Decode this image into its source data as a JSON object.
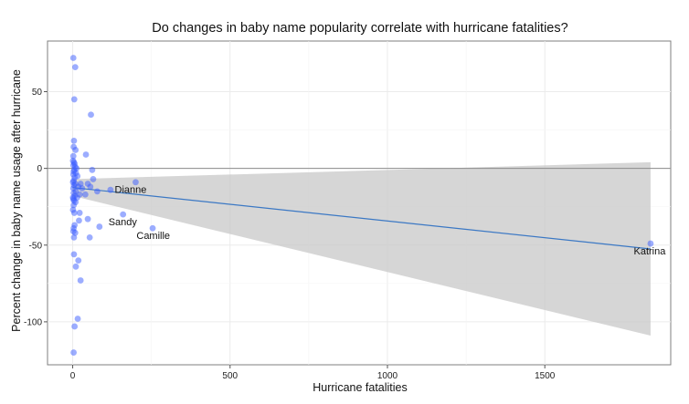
{
  "chart_data": {
    "type": "scatter",
    "title": "Do changes in baby name popularity correlate with hurricane fatalities?",
    "xlabel": "Hurricane fatalities",
    "ylabel": "Percent change in baby name usage after hurricane",
    "xlim": [
      -80,
      1900
    ],
    "ylim": [
      -128,
      83
    ],
    "x_ticks": [
      0,
      500,
      1000,
      1500
    ],
    "y_ticks": [
      50,
      0,
      -50,
      -100
    ],
    "x_tick_labels": [
      "0",
      "500",
      "1000",
      "1500"
    ],
    "y_tick_labels": [
      "50",
      "0",
      "-50",
      "-100"
    ],
    "grid": true,
    "reference_line_y": 0,
    "regression": {
      "x": [
        0,
        1836
      ],
      "y": [
        -12.5,
        -52.5
      ],
      "band_upper": [
        -7,
        4
      ],
      "band_lower": [
        -18,
        -109
      ]
    },
    "annotations": [
      {
        "label": "Dianne",
        "x": 184,
        "y": -16
      },
      {
        "label": "Sandy",
        "x": 159,
        "y": -37
      },
      {
        "label": "Camille",
        "x": 256,
        "y": -46
      },
      {
        "label": "Katrina",
        "x": 1833,
        "y": -56
      }
    ],
    "points": [
      {
        "x": 2,
        "y": 72
      },
      {
        "x": 8,
        "y": 66
      },
      {
        "x": 5,
        "y": 45
      },
      {
        "x": 58,
        "y": 35
      },
      {
        "x": 4,
        "y": 18
      },
      {
        "x": 3,
        "y": 14
      },
      {
        "x": 9,
        "y": 12
      },
      {
        "x": 42,
        "y": 9
      },
      {
        "x": 2,
        "y": 8
      },
      {
        "x": 1,
        "y": 5
      },
      {
        "x": 4,
        "y": 4
      },
      {
        "x": 6,
        "y": 3
      },
      {
        "x": 2,
        "y": 2
      },
      {
        "x": 8,
        "y": 1
      },
      {
        "x": 12,
        "y": 0
      },
      {
        "x": 5,
        "y": -1
      },
      {
        "x": 62,
        "y": -1
      },
      {
        "x": 3,
        "y": -2
      },
      {
        "x": 10,
        "y": -3
      },
      {
        "x": 2,
        "y": -4
      },
      {
        "x": 15,
        "y": -5
      },
      {
        "x": 6,
        "y": -6
      },
      {
        "x": 65,
        "y": -7
      },
      {
        "x": 3,
        "y": -8
      },
      {
        "x": 1,
        "y": -9
      },
      {
        "x": 8,
        "y": -10
      },
      {
        "x": 25,
        "y": -10
      },
      {
        "x": 48,
        "y": -10
      },
      {
        "x": 200,
        "y": -9
      },
      {
        "x": 4,
        "y": -11
      },
      {
        "x": 18,
        "y": -12
      },
      {
        "x": 56,
        "y": -12
      },
      {
        "x": 2,
        "y": -13
      },
      {
        "x": 30,
        "y": -13
      },
      {
        "x": 120,
        "y": -14
      },
      {
        "x": 10,
        "y": -15
      },
      {
        "x": 78,
        "y": -15
      },
      {
        "x": 3,
        "y": -16
      },
      {
        "x": 22,
        "y": -17
      },
      {
        "x": 40,
        "y": -17
      },
      {
        "x": 6,
        "y": -18
      },
      {
        "x": 1,
        "y": -19
      },
      {
        "x": 14,
        "y": -19
      },
      {
        "x": 2,
        "y": -20
      },
      {
        "x": 4,
        "y": -21
      },
      {
        "x": 9,
        "y": -22
      },
      {
        "x": 3,
        "y": -24
      },
      {
        "x": 1,
        "y": -27
      },
      {
        "x": 5,
        "y": -29
      },
      {
        "x": 22,
        "y": -29
      },
      {
        "x": 160,
        "y": -30
      },
      {
        "x": 48,
        "y": -33
      },
      {
        "x": 20,
        "y": -34
      },
      {
        "x": 6,
        "y": -37
      },
      {
        "x": 85,
        "y": -38
      },
      {
        "x": 3,
        "y": -39
      },
      {
        "x": 254,
        "y": -39
      },
      {
        "x": 2,
        "y": -41
      },
      {
        "x": 8,
        "y": -42
      },
      {
        "x": 4,
        "y": -45
      },
      {
        "x": 54,
        "y": -45
      },
      {
        "x": 4,
        "y": -56
      },
      {
        "x": 18,
        "y": -60
      },
      {
        "x": 10,
        "y": -64
      },
      {
        "x": 25,
        "y": -73
      },
      {
        "x": 16,
        "y": -98
      },
      {
        "x": 6,
        "y": -103
      },
      {
        "x": 3,
        "y": -120
      },
      {
        "x": 1836,
        "y": -49
      }
    ]
  }
}
